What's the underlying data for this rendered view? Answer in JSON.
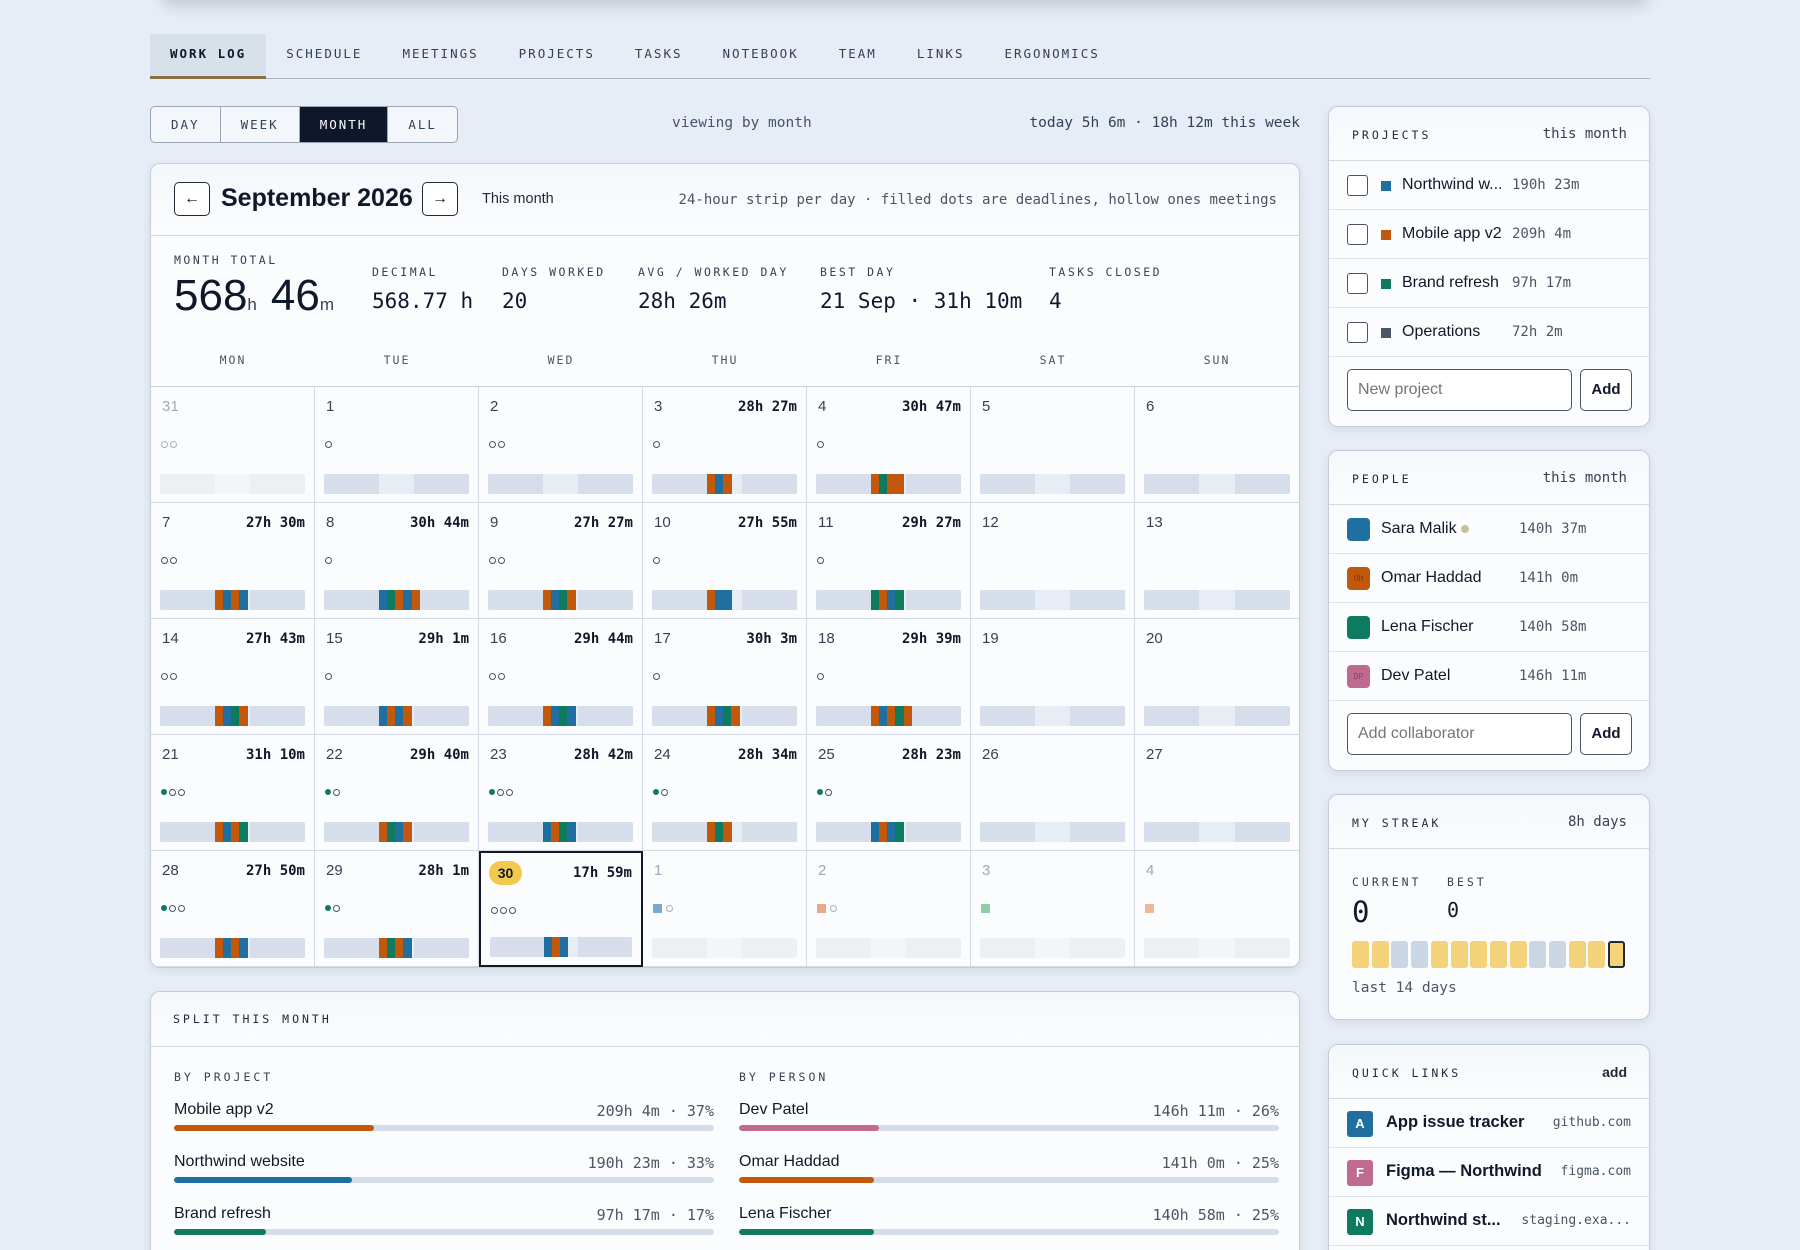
{
  "nav": {
    "tabs": [
      "WORK LOG",
      "SCHEDULE",
      "MEETINGS",
      "PROJECTS",
      "TASKS",
      "NOTEBOOK",
      "TEAM",
      "LINKS",
      "ERGONOMICS"
    ],
    "active": 0
  },
  "view_toggle": {
    "options": [
      "DAY",
      "WEEK",
      "MONTH",
      "ALL"
    ],
    "active": 2
  },
  "viewing_text": "viewing by month",
  "today_summary": "today 5h 6m · 18h 12m this week",
  "calendar": {
    "prev_label": "←",
    "next_label": "→",
    "title": "September 2026",
    "this_month_label": "This month",
    "legend": "24-hour strip per day · filled dots are deadlines, hollow ones meetings",
    "stats": {
      "month_total_label": "MONTH TOTAL",
      "hours": "568",
      "h_unit": "h",
      "minutes": "46",
      "m_unit": "m",
      "decimal_label": "DECIMAL",
      "decimal": "568.77 h",
      "days_label": "DAYS WORKED",
      "days": "20",
      "avg_label": "AVG / WORKED DAY",
      "avg": "28h 26m",
      "best_label": "BEST DAY",
      "best": "21 Sep · 31h 10m",
      "tasks_label": "TASKS CLOSED",
      "tasks": "4"
    },
    "weekdays": [
      "MON",
      "TUE",
      "WED",
      "THU",
      "FRI",
      "SAT",
      "SUN"
    ],
    "weeks": [
      [
        {
          "d": "31",
          "other": true,
          "hrs": "",
          "f": 0,
          "h": 2
        },
        {
          "d": "1",
          "hrs": "",
          "f": 0,
          "h": 1
        },
        {
          "d": "2",
          "hrs": "",
          "f": 0,
          "h": 2
        },
        {
          "d": "3",
          "hrs": "28h 27m",
          "f": 0,
          "h": 1,
          "strip": [
            "#c2580c",
            "#1f6fa0",
            "#c2580c"
          ]
        },
        {
          "d": "4",
          "hrs": "30h 47m",
          "f": 0,
          "h": 1,
          "strip": [
            "#c2580c",
            "#0e7a5f",
            "#c2580c",
            "#c2580c"
          ]
        },
        {
          "d": "5",
          "hrs": "",
          "f": 0,
          "h": 0
        },
        {
          "d": "6",
          "hrs": "",
          "f": 0,
          "h": 0
        }
      ],
      [
        {
          "d": "7",
          "hrs": "27h 30m",
          "f": 0,
          "h": 2,
          "strip": [
            "#c2580c",
            "#1f6fa0",
            "#c2580c",
            "#1f6fa0"
          ]
        },
        {
          "d": "8",
          "hrs": "30h 44m",
          "f": 0,
          "h": 1,
          "strip": [
            "#1f6fa0",
            "#0e7a5f",
            "#c2580c",
            "#1f6fa0",
            "#c2580c"
          ]
        },
        {
          "d": "9",
          "hrs": "27h 27m",
          "f": 0,
          "h": 2,
          "strip": [
            "#c2580c",
            "#1f6fa0",
            "#0e7a5f",
            "#c2580c"
          ]
        },
        {
          "d": "10",
          "hrs": "27h 55m",
          "f": 0,
          "h": 1,
          "strip": [
            "#c2580c",
            "#1f6fa0",
            "#1f6fa0"
          ]
        },
        {
          "d": "11",
          "hrs": "29h 27m",
          "f": 0,
          "h": 1,
          "strip": [
            "#0e7a5f",
            "#c2580c",
            "#1f6fa0",
            "#0e7a5f"
          ]
        },
        {
          "d": "12",
          "hrs": "",
          "f": 0,
          "h": 0
        },
        {
          "d": "13",
          "hrs": "",
          "f": 0,
          "h": 0
        }
      ],
      [
        {
          "d": "14",
          "hrs": "27h 43m",
          "f": 0,
          "h": 2,
          "strip": [
            "#c2580c",
            "#1f6fa0",
            "#0e7a5f",
            "#c2580c"
          ]
        },
        {
          "d": "15",
          "hrs": "29h 1m",
          "f": 0,
          "h": 1,
          "strip": [
            "#1f6fa0",
            "#c2580c",
            "#1f6fa0",
            "#c2580c"
          ]
        },
        {
          "d": "16",
          "hrs": "29h 44m",
          "f": 0,
          "h": 2,
          "strip": [
            "#c2580c",
            "#1f6fa0",
            "#0e7a5f",
            "#1f6fa0"
          ]
        },
        {
          "d": "17",
          "hrs": "30h 3m",
          "f": 0,
          "h": 1,
          "strip": [
            "#c2580c",
            "#1f6fa0",
            "#0e7a5f",
            "#c2580c"
          ]
        },
        {
          "d": "18",
          "hrs": "29h 39m",
          "f": 0,
          "h": 1,
          "strip": [
            "#c2580c",
            "#1f6fa0",
            "#c2580c",
            "#0e7a5f",
            "#c2580c"
          ]
        },
        {
          "d": "19",
          "hrs": "",
          "f": 0,
          "h": 0
        },
        {
          "d": "20",
          "hrs": "",
          "f": 0,
          "h": 0
        }
      ],
      [
        {
          "d": "21",
          "hrs": "31h 10m",
          "f": 1,
          "h": 2,
          "strip": [
            "#c2580c",
            "#1f6fa0",
            "#c2580c",
            "#0e7a5f"
          ]
        },
        {
          "d": "22",
          "hrs": "29h 40m",
          "f": 1,
          "h": 1,
          "strip": [
            "#c2580c",
            "#0e7a5f",
            "#1f6fa0",
            "#c2580c"
          ]
        },
        {
          "d": "23",
          "hrs": "28h 42m",
          "f": 1,
          "h": 2,
          "strip": [
            "#1f6fa0",
            "#c2580c",
            "#0e7a5f",
            "#1f6fa0"
          ]
        },
        {
          "d": "24",
          "hrs": "28h 34m",
          "f": 1,
          "h": 1,
          "strip": [
            "#c2580c",
            "#0e7a5f",
            "#c2580c"
          ]
        },
        {
          "d": "25",
          "hrs": "28h 23m",
          "f": 1,
          "h": 1,
          "strip": [
            "#1f6fa0",
            "#c2580c",
            "#1f6fa0",
            "#0e7a5f"
          ]
        },
        {
          "d": "26",
          "hrs": "",
          "f": 0,
          "h": 0
        },
        {
          "d": "27",
          "hrs": "",
          "f": 0,
          "h": 0
        }
      ],
      [
        {
          "d": "28",
          "hrs": "27h 50m",
          "f": 1,
          "h": 2,
          "strip": [
            "#c2580c",
            "#1f6fa0",
            "#c2580c",
            "#1f6fa0"
          ]
        },
        {
          "d": "29",
          "hrs": "28h 1m",
          "f": 1,
          "h": 1,
          "strip": [
            "#c2580c",
            "#0e7a5f",
            "#c2580c",
            "#1f6fa0"
          ]
        },
        {
          "d": "30",
          "today": true,
          "hrs": "17h 59m",
          "f": 0,
          "h": 3,
          "strip": [
            "#1f6fa0",
            "#c2580c",
            "#1f6fa0"
          ]
        },
        {
          "d": "1",
          "other": true,
          "hrs": "",
          "sqc": "#7ea8cc",
          "h": 1
        },
        {
          "d": "2",
          "other": true,
          "hrs": "",
          "sqc": "#e6a98a",
          "h": 1
        },
        {
          "d": "3",
          "other": true,
          "hrs": "",
          "sqc": "#8ccfa9",
          "h": 0
        },
        {
          "d": "4",
          "other": true,
          "hrs": "",
          "sqc": "#efb899",
          "h": 0
        }
      ]
    ]
  },
  "split": {
    "title": "SPLIT THIS MONTH",
    "by_project_label": "BY PROJECT",
    "by_person_label": "BY PERSON",
    "projects": [
      {
        "name": "Mobile app v2",
        "value": "209h 4m · 37%",
        "pct": 37,
        "color": "#c2580c"
      },
      {
        "name": "Northwind website",
        "value": "190h 23m · 33%",
        "pct": 33,
        "color": "#1f6fa0"
      },
      {
        "name": "Brand refresh",
        "value": "97h 17m · 17%",
        "pct": 17,
        "color": "#0e7a5f"
      }
    ],
    "people": [
      {
        "name": "Dev Patel",
        "value": "146h 11m · 26%",
        "pct": 26,
        "color": "#c06a8f"
      },
      {
        "name": "Omar Haddad",
        "value": "141h 0m · 25%",
        "pct": 25,
        "color": "#c2580c"
      },
      {
        "name": "Lena Fischer",
        "value": "140h 58m · 25%",
        "pct": 25,
        "color": "#0e7a5f"
      }
    ]
  },
  "projects_panel": {
    "title": "PROJECTS",
    "period": "this month",
    "items": [
      {
        "name": "Northwind w...",
        "hours": "190h 23m",
        "color": "#1f6fa0"
      },
      {
        "name": "Mobile app v2",
        "hours": "209h 4m",
        "color": "#c2580c"
      },
      {
        "name": "Brand refresh",
        "hours": "97h 17m",
        "color": "#0e7a5f"
      },
      {
        "name": "Operations",
        "hours": "72h 2m",
        "color": "#4b5563"
      }
    ],
    "input_placeholder": "New project",
    "add_label": "Add"
  },
  "people_panel": {
    "title": "PEOPLE",
    "period": "this month",
    "items": [
      {
        "name": "Sara Malik",
        "hours": "140h 37m",
        "color": "#1f6fa0",
        "initials": "",
        "online": true
      },
      {
        "name": "Omar Haddad",
        "hours": "141h 0m",
        "color": "#c2580c",
        "initials": "OH"
      },
      {
        "name": "Lena Fischer",
        "hours": "140h 58m",
        "color": "#0e7a5f",
        "initials": ""
      },
      {
        "name": "Dev Patel",
        "hours": "146h 11m",
        "color": "#c06a8f",
        "initials": "DP"
      }
    ],
    "input_placeholder": "Add collaborator",
    "add_label": "Add"
  },
  "streak_panel": {
    "title": "MY STREAK",
    "right": "8h days",
    "current_label": "CURRENT",
    "current": "0",
    "best_label": "BEST",
    "best": "0",
    "days": [
      "y",
      "y",
      "g",
      "g",
      "y",
      "y",
      "y",
      "y",
      "y",
      "g",
      "g",
      "y",
      "y",
      "t"
    ],
    "caption": "last 14 days"
  },
  "links_panel": {
    "title": "QUICK LINKS",
    "add_label": "add",
    "items": [
      {
        "icon": "A",
        "name": "App issue tracker",
        "domain": "github.com",
        "color": "#1f6fa0"
      },
      {
        "icon": "F",
        "name": "Figma — Northwind",
        "domain": "figma.com",
        "color": "#c06a8f"
      },
      {
        "icon": "N",
        "name": "Northwind st...",
        "domain": "staging.exa...",
        "color": "#0e7a5f"
      }
    ]
  }
}
